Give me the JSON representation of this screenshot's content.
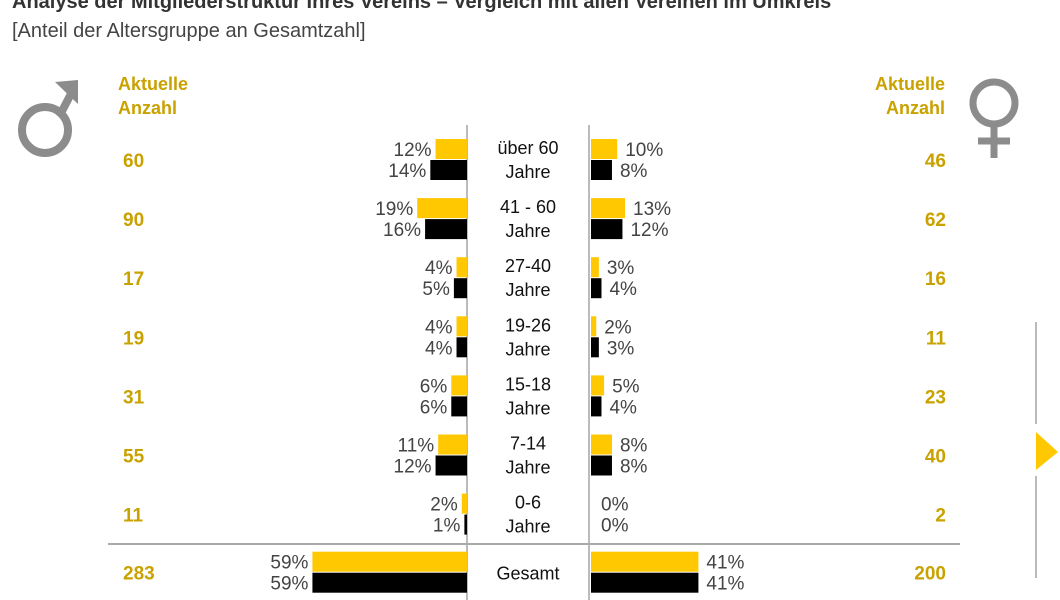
{
  "title": "Analyse der Mitgliederstruktur Ihres Vereins – Vergleich mit allen Vereinen im Umkreis",
  "subtitle": "[Anteil der Altersgruppe an Gesamtzahl]",
  "left_header": {
    "line1": "Aktuelle",
    "line2": "Anzahl"
  },
  "right_header": {
    "line1": "Aktuelle",
    "line2": "Anzahl"
  },
  "icons": {
    "left": "male-symbol-icon",
    "right": "female-symbol-icon",
    "nav": "play-arrow-icon"
  },
  "colors": {
    "yellow": "#ffc800",
    "black": "#000000",
    "count_text": "#c9a200",
    "symbol": "#8c8c8c"
  },
  "chart_data": {
    "type": "bar",
    "orientation": "horizontal-population-pyramid",
    "categories": [
      [
        "über 60",
        "Jahre"
      ],
      [
        "41 - 60",
        "Jahre"
      ],
      [
        "27-40",
        "Jahre"
      ],
      [
        "19-26",
        "Jahre"
      ],
      [
        "15-18",
        "Jahre"
      ],
      [
        "7-14",
        "Jahre"
      ],
      [
        "0-6",
        "Jahre"
      ],
      [
        "Gesamt",
        ""
      ]
    ],
    "male": {
      "count": [
        60,
        90,
        17,
        19,
        31,
        55,
        11,
        283
      ],
      "yellow_pct": [
        12,
        19,
        4,
        4,
        6,
        11,
        2,
        59
      ],
      "black_pct": [
        14,
        16,
        5,
        4,
        6,
        12,
        1,
        59
      ]
    },
    "female": {
      "count": [
        46,
        62,
        16,
        11,
        23,
        40,
        2,
        200
      ],
      "yellow_pct": [
        10,
        13,
        3,
        2,
        5,
        8,
        0,
        41
      ],
      "black_pct": [
        8,
        12,
        4,
        3,
        4,
        8,
        0,
        41
      ]
    },
    "unit": "%"
  }
}
